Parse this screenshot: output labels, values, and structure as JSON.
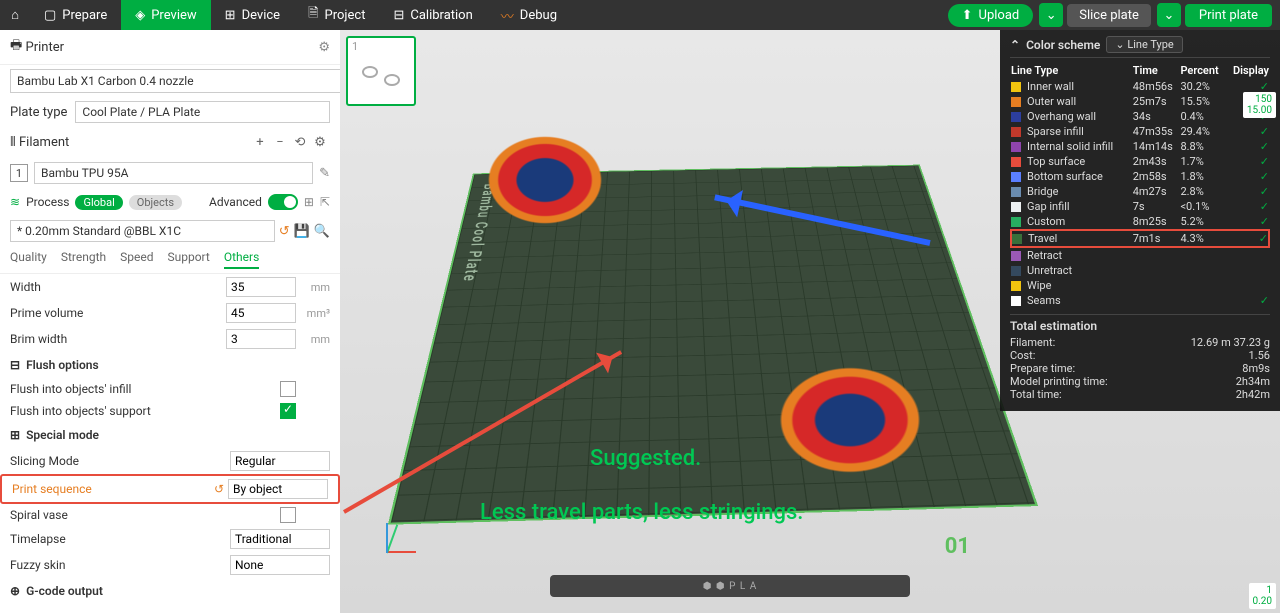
{
  "topbar": {
    "tabs": [
      "Prepare",
      "Preview",
      "Device",
      "Project",
      "Calibration",
      "Debug"
    ],
    "active_index": 1,
    "upload": "Upload",
    "slice": "Slice plate",
    "print": "Print plate"
  },
  "printer": {
    "header": "Printer",
    "name": "Bambu Lab X1 Carbon 0.4 nozzle",
    "plate_type_label": "Plate type",
    "plate_type": "Cool Plate / PLA Plate"
  },
  "filament": {
    "header": "Filament",
    "items": [
      {
        "index": "1",
        "name": "Bambu TPU 95A",
        "color": "#ffffff"
      }
    ]
  },
  "process": {
    "header": "Process",
    "global": "Global",
    "objects": "Objects",
    "advanced": "Advanced",
    "preset": "* 0.20mm Standard @BBL X1C",
    "tabs": [
      "Quality",
      "Strength",
      "Speed",
      "Support",
      "Others"
    ],
    "active_tab": 4
  },
  "params": {
    "width": {
      "label": "Width",
      "value": "35",
      "unit": "mm"
    },
    "prime": {
      "label": "Prime volume",
      "value": "45",
      "unit": "mm³"
    },
    "brim": {
      "label": "Brim width",
      "value": "3",
      "unit": "mm"
    },
    "flush_hdr": "Flush options",
    "flush_infill": "Flush into objects' infill",
    "flush_support": "Flush into objects' support",
    "special_hdr": "Special mode",
    "slicing_mode": {
      "label": "Slicing Mode",
      "value": "Regular"
    },
    "print_seq": {
      "label": "Print sequence",
      "value": "By object"
    },
    "spiral": {
      "label": "Spiral vase"
    },
    "timelapse": {
      "label": "Timelapse",
      "value": "Traditional"
    },
    "fuzzy": {
      "label": "Fuzzy skin",
      "value": "None"
    },
    "gcode_hdr": "G-code output"
  },
  "viewport": {
    "plate_label": "Bambu Cool Plate",
    "plate_num": "01",
    "overlay1": "Suggested.",
    "overlay2": "Less travel parts, less stringings.",
    "platebar": "⬢ ⬢  P L A",
    "thumb_index": "1"
  },
  "legend": {
    "title": "Color scheme",
    "dropdown": "Line Type",
    "cols": [
      "Line Type",
      "Time",
      "Percent",
      "Display"
    ],
    "rows": [
      {
        "color": "#f1c40f",
        "name": "Inner wall",
        "time": "48m56s",
        "pct": "30.2%",
        "on": true
      },
      {
        "color": "#e67e22",
        "name": "Outer wall",
        "time": "25m7s",
        "pct": "15.5%",
        "on": true
      },
      {
        "color": "#2c3e9e",
        "name": "Overhang wall",
        "time": "34s",
        "pct": "0.4%",
        "on": true
      },
      {
        "color": "#c0392b",
        "name": "Sparse infill",
        "time": "47m35s",
        "pct": "29.4%",
        "on": true
      },
      {
        "color": "#8e44ad",
        "name": "Internal solid infill",
        "time": "14m14s",
        "pct": "8.8%",
        "on": true
      },
      {
        "color": "#e74c3c",
        "name": "Top surface",
        "time": "2m43s",
        "pct": "1.7%",
        "on": true
      },
      {
        "color": "#5b7fff",
        "name": "Bottom surface",
        "time": "2m58s",
        "pct": "1.8%",
        "on": true
      },
      {
        "color": "#6a8caf",
        "name": "Bridge",
        "time": "4m27s",
        "pct": "2.8%",
        "on": true
      },
      {
        "color": "#ecf0f1",
        "name": "Gap infill",
        "time": "7s",
        "pct": "<0.1%",
        "on": true
      },
      {
        "color": "#27ae60",
        "name": "Custom",
        "time": "8m25s",
        "pct": "5.2%",
        "on": true
      },
      {
        "color": "#3a6f3a",
        "name": "Travel",
        "time": "7m1s",
        "pct": "4.3%",
        "on": true,
        "hl": true
      },
      {
        "color": "#9b59b6",
        "name": "Retract",
        "time": "",
        "pct": "",
        "on": false
      },
      {
        "color": "#34495e",
        "name": "Unretract",
        "time": "",
        "pct": "",
        "on": false
      },
      {
        "color": "#f1c40f",
        "name": "Wipe",
        "time": "",
        "pct": "",
        "on": false
      },
      {
        "color": "#ffffff",
        "name": "Seams",
        "time": "",
        "pct": "",
        "on": true
      }
    ],
    "est_title": "Total estimation",
    "est": [
      {
        "k": "Filament:",
        "v": "12.69 m   37.23 g"
      },
      {
        "k": "Cost:",
        "v": "1.56"
      },
      {
        "k": "Prepare time:",
        "v": "8m9s"
      },
      {
        "k": "Model printing time:",
        "v": "2h34m"
      },
      {
        "k": "Total time:",
        "v": "2h42m"
      }
    ]
  },
  "ruler_top": {
    "a": "150",
    "b": "15.00"
  },
  "ruler_bot": {
    "a": "1",
    "b": "0.20"
  }
}
